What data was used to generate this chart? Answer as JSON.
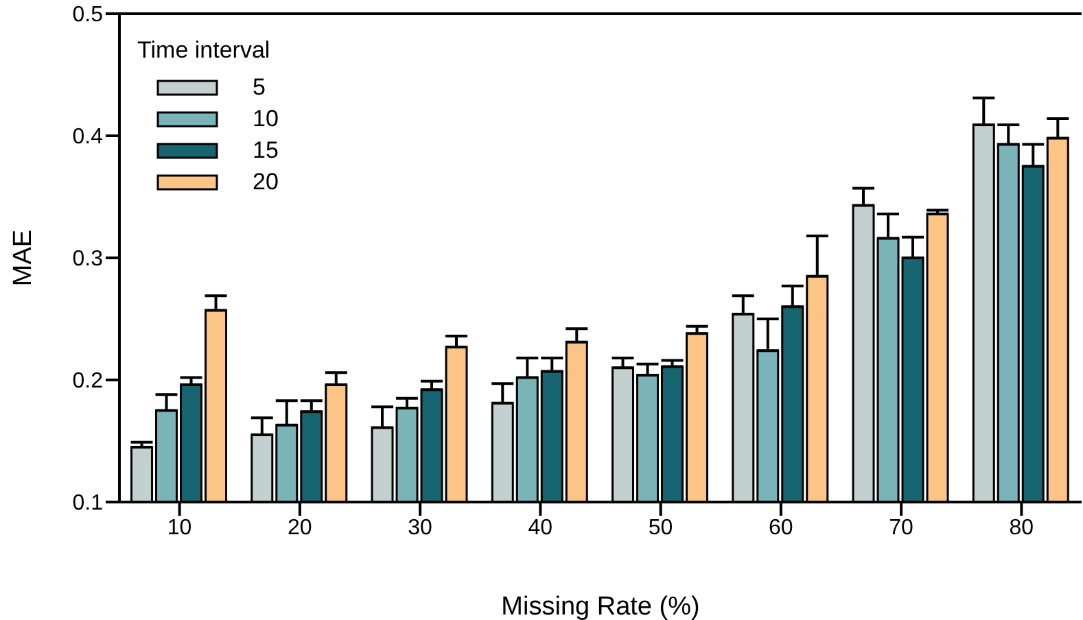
{
  "chart_data": {
    "type": "bar",
    "xlabel": "Missing Rate (%)",
    "ylabel": "MAE",
    "legend_title": "Time interval",
    "legend": "top left",
    "categories": [
      "10",
      "20",
      "30",
      "40",
      "50",
      "60",
      "70",
      "80"
    ],
    "ylim": [
      0.1,
      0.5
    ],
    "yticks": [
      0.1,
      0.2,
      0.3,
      0.4,
      0.5
    ],
    "grid": false,
    "series": [
      {
        "name": "5",
        "color": "#c3d0d0",
        "values": [
          0.145,
          0.155,
          0.161,
          0.181,
          0.21,
          0.254,
          0.343,
          0.409
        ],
        "errors": [
          [
            0.145,
            0.149
          ],
          [
            0.155,
            0.169
          ],
          [
            0.161,
            0.178
          ],
          [
            0.181,
            0.197
          ],
          [
            0.21,
            0.218
          ],
          [
            0.254,
            0.269
          ],
          [
            0.343,
            0.357
          ],
          [
            0.409,
            0.431
          ]
        ]
      },
      {
        "name": "10",
        "color": "#7ab3b8",
        "values": [
          0.175,
          0.163,
          0.177,
          0.202,
          0.204,
          0.224,
          0.316,
          0.393
        ],
        "errors": [
          [
            0.175,
            0.188
          ],
          [
            0.163,
            0.183
          ],
          [
            0.177,
            0.185
          ],
          [
            0.202,
            0.218
          ],
          [
            0.204,
            0.213
          ],
          [
            0.224,
            0.25
          ],
          [
            0.316,
            0.336
          ],
          [
            0.393,
            0.409
          ]
        ]
      },
      {
        "name": "15",
        "color": "#176570",
        "values": [
          0.196,
          0.174,
          0.192,
          0.207,
          0.211,
          0.26,
          0.3,
          0.375
        ],
        "errors": [
          [
            0.196,
            0.202
          ],
          [
            0.174,
            0.183
          ],
          [
            0.192,
            0.199
          ],
          [
            0.207,
            0.218
          ],
          [
            0.211,
            0.216
          ],
          [
            0.26,
            0.277
          ],
          [
            0.3,
            0.317
          ],
          [
            0.375,
            0.393
          ]
        ]
      },
      {
        "name": "20",
        "color": "#fdc585",
        "values": [
          0.257,
          0.196,
          0.227,
          0.231,
          0.238,
          0.285,
          0.336,
          0.398
        ],
        "errors": [
          [
            0.257,
            0.269
          ],
          [
            0.196,
            0.206
          ],
          [
            0.227,
            0.236
          ],
          [
            0.231,
            0.242
          ],
          [
            0.238,
            0.244
          ],
          [
            0.285,
            0.318
          ],
          [
            0.336,
            0.339
          ],
          [
            0.398,
            0.414
          ]
        ]
      }
    ]
  }
}
